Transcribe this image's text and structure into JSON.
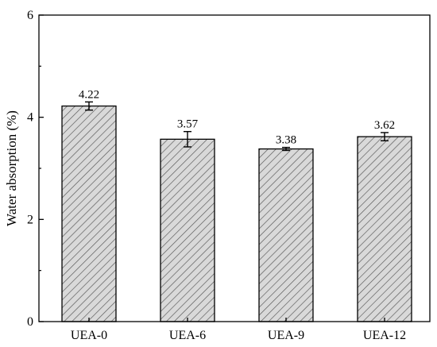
{
  "chart_data": {
    "type": "bar",
    "categories": [
      "UEA-0",
      "UEA-6",
      "UEA-9",
      "UEA-12"
    ],
    "values": [
      4.22,
      3.57,
      3.38,
      3.62
    ],
    "value_labels": [
      "4.22",
      "3.57",
      "3.38",
      "3.62"
    ],
    "errors": [
      0.08,
      0.15,
      0.03,
      0.08
    ],
    "title": "",
    "xlabel": "",
    "ylabel": "Water absorption (%)",
    "ylim": [
      0,
      6
    ],
    "yticks": [
      0,
      2,
      4,
      6
    ],
    "ytick_labels": [
      "0",
      "2",
      "4",
      "6"
    ],
    "grid": false,
    "bar_fill": "hatched gray",
    "colors": {
      "bar_background": "#d9d9d9",
      "hatch": "#555555",
      "edge": "#000000"
    }
  }
}
